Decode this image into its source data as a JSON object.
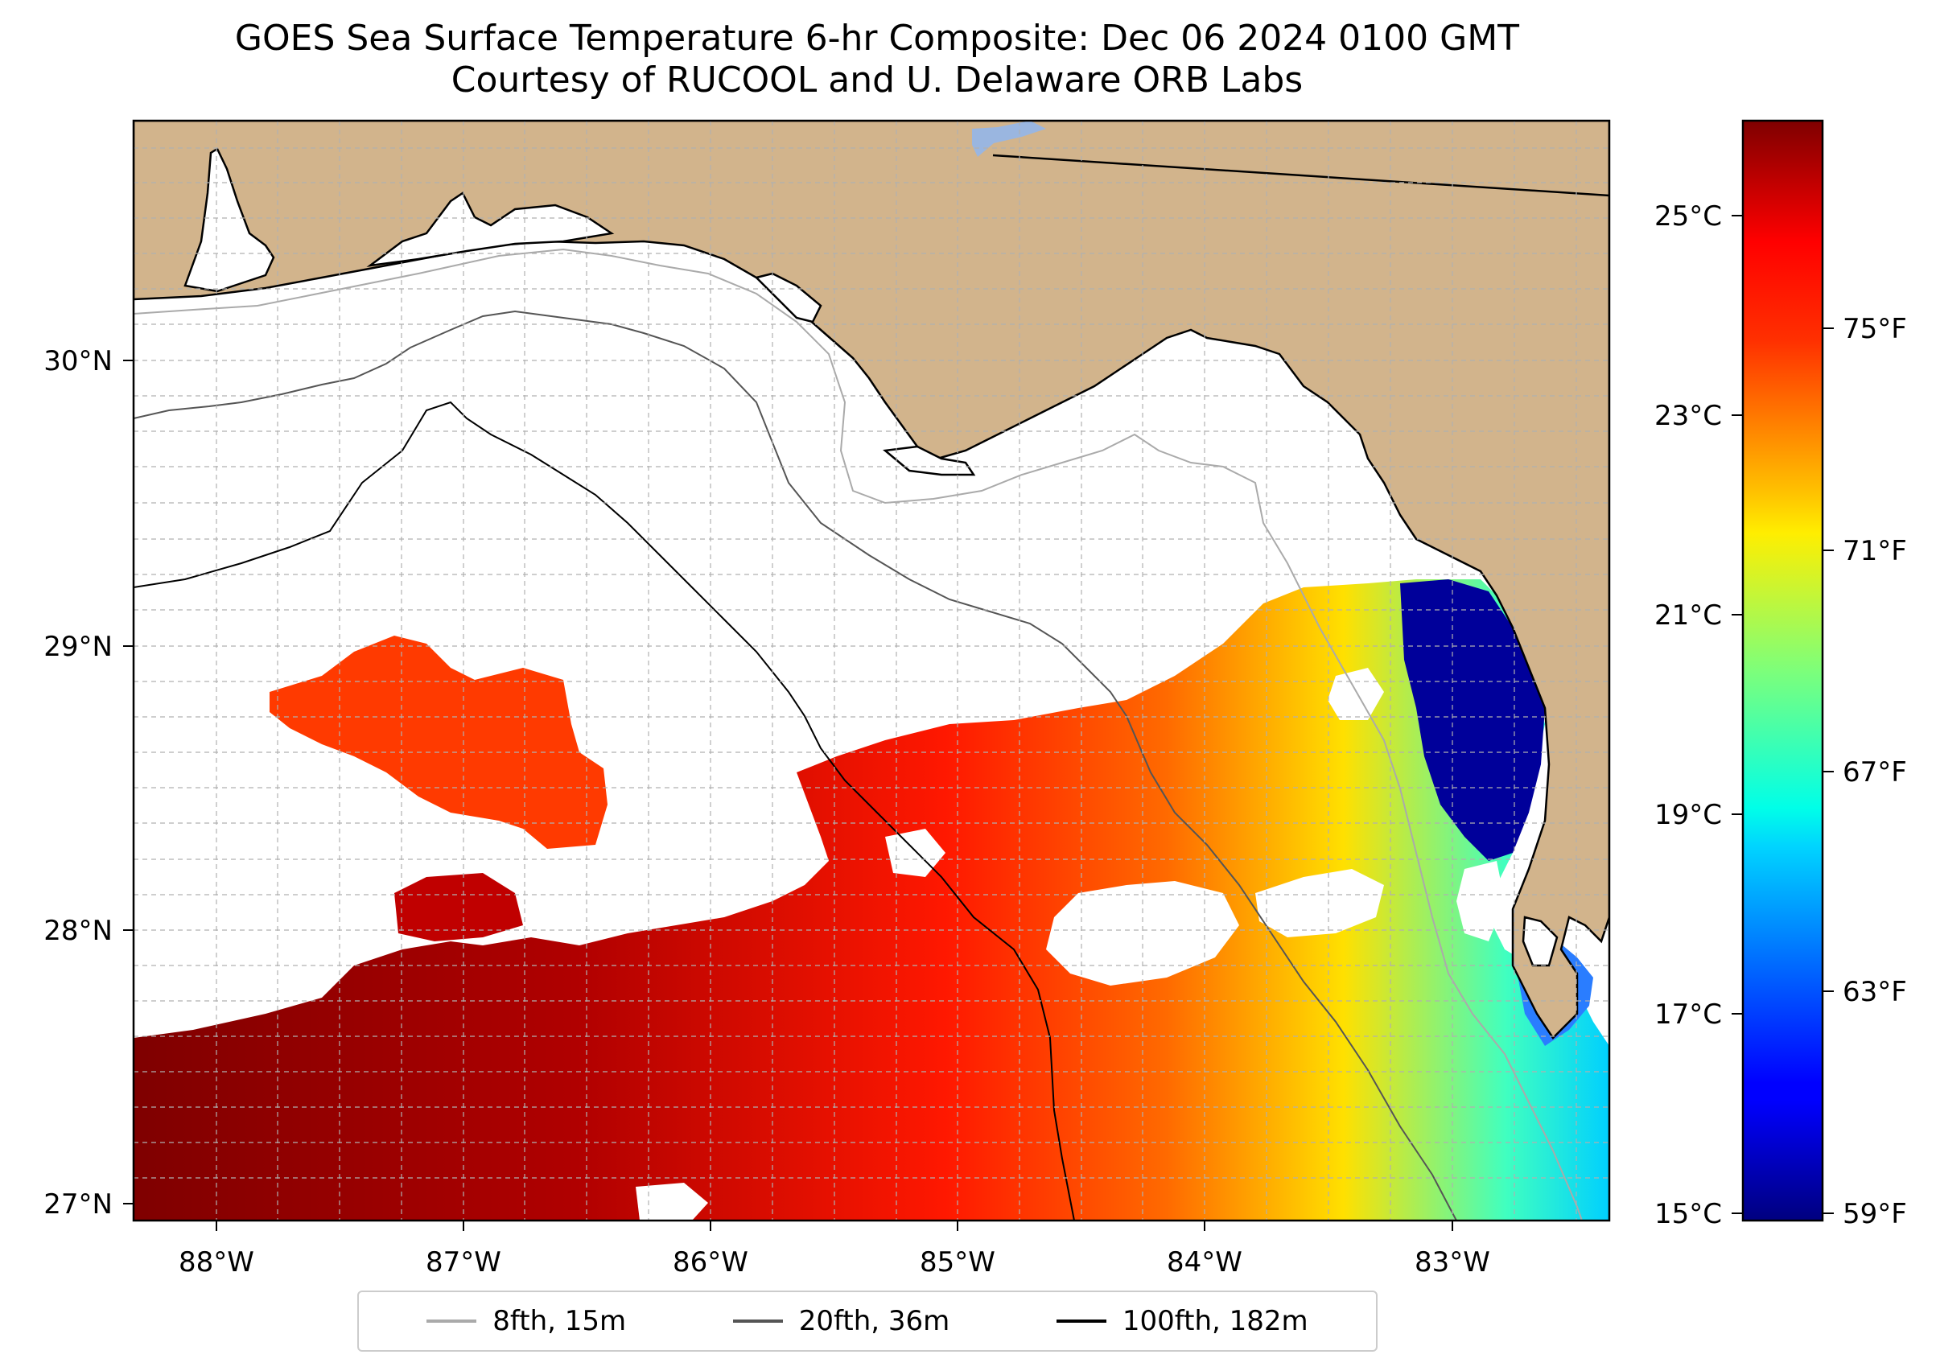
{
  "title": {
    "line1": "GOES Sea Surface Temperature 6-hr Composite: Dec 06 2024 0100 GMT",
    "line2": "Courtesy of RUCOOL and U. Delaware ORB Labs"
  },
  "map": {
    "lon_range": [
      -88.33,
      -82.37
    ],
    "lat_range": [
      26.93,
      30.85
    ],
    "land_color": "#d2b48c",
    "grid": true,
    "lon_ticks": [
      "88°W",
      "87°W",
      "86°W",
      "85°W",
      "84°W",
      "83°W"
    ],
    "lat_ticks": [
      "30°N",
      "29°N",
      "28°N",
      "27°N"
    ]
  },
  "colorbar": {
    "colormap": "jet",
    "celsius_ticks": [
      "25°C",
      "23°C",
      "21°C",
      "19°C",
      "17°C",
      "15°C"
    ],
    "fahrenheit_ticks": [
      "75°F",
      "71°F",
      "67°F",
      "63°F",
      "59°F"
    ]
  },
  "legend": {
    "items": [
      {
        "label": "8fth, 15m",
        "color": "#aaaaaa"
      },
      {
        "label": "20fth, 36m",
        "color": "#555555"
      },
      {
        "label": "100fth, 182m",
        "color": "#000000"
      }
    ]
  }
}
